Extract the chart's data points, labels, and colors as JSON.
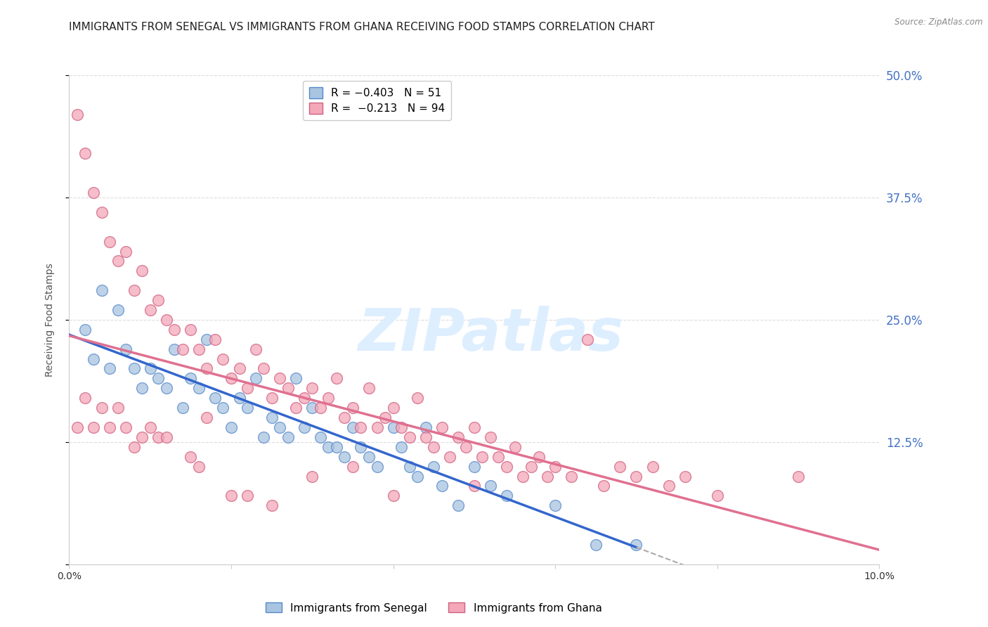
{
  "title": "IMMIGRANTS FROM SENEGAL VS IMMIGRANTS FROM GHANA RECEIVING FOOD STAMPS CORRELATION CHART",
  "source": "Source: ZipAtlas.com",
  "ylabel": "Receiving Food Stamps",
  "legend_corr_labels": [
    "R = −0.403   N = 51",
    "R =  −0.213   N = 94"
  ],
  "legend_bottom_labels": [
    "Immigrants from Senegal",
    "Immigrants from Ghana"
  ],
  "r_senegal": -0.403,
  "n_senegal": 51,
  "r_ghana": -0.213,
  "n_ghana": 94,
  "xmin": 0.0,
  "xmax": 0.1,
  "ymin": 0.0,
  "ymax": 0.5,
  "yticks": [
    0.0,
    0.125,
    0.25,
    0.375,
    0.5
  ],
  "ytick_labels_right": [
    "",
    "12.5%",
    "25.0%",
    "37.5%",
    "50.0%"
  ],
  "xticks": [
    0.0,
    0.02,
    0.04,
    0.06,
    0.08,
    0.1
  ],
  "xtick_labels": [
    "0.0%",
    "",
    "",
    "",
    "",
    "10.0%"
  ],
  "color_senegal": "#a8c4e0",
  "color_ghana": "#f4a7b9",
  "edge_senegal": "#5588cc",
  "edge_ghana": "#d06080",
  "line_color_senegal": "#3366cc",
  "line_color_ghana": "#e07090",
  "dash_ext_color": "#aaaaaa",
  "watermark": "ZIPatlas",
  "watermark_color": "#ddeeff",
  "grid_color": "#dddddd",
  "title_fontsize": 11,
  "tick_fontsize": 10,
  "right_tick_color": "#4472c4",
  "senegal_scatter": [
    [
      0.002,
      0.24
    ],
    [
      0.003,
      0.21
    ],
    [
      0.004,
      0.28
    ],
    [
      0.005,
      0.2
    ],
    [
      0.006,
      0.26
    ],
    [
      0.007,
      0.22
    ],
    [
      0.008,
      0.2
    ],
    [
      0.009,
      0.18
    ],
    [
      0.01,
      0.2
    ],
    [
      0.011,
      0.19
    ],
    [
      0.012,
      0.18
    ],
    [
      0.013,
      0.22
    ],
    [
      0.014,
      0.16
    ],
    [
      0.015,
      0.19
    ],
    [
      0.016,
      0.18
    ],
    [
      0.017,
      0.23
    ],
    [
      0.018,
      0.17
    ],
    [
      0.019,
      0.16
    ],
    [
      0.02,
      0.14
    ],
    [
      0.021,
      0.17
    ],
    [
      0.022,
      0.16
    ],
    [
      0.023,
      0.19
    ],
    [
      0.024,
      0.13
    ],
    [
      0.025,
      0.15
    ],
    [
      0.026,
      0.14
    ],
    [
      0.027,
      0.13
    ],
    [
      0.028,
      0.19
    ],
    [
      0.029,
      0.14
    ],
    [
      0.03,
      0.16
    ],
    [
      0.031,
      0.13
    ],
    [
      0.032,
      0.12
    ],
    [
      0.033,
      0.12
    ],
    [
      0.034,
      0.11
    ],
    [
      0.035,
      0.14
    ],
    [
      0.036,
      0.12
    ],
    [
      0.037,
      0.11
    ],
    [
      0.038,
      0.1
    ],
    [
      0.04,
      0.14
    ],
    [
      0.041,
      0.12
    ],
    [
      0.042,
      0.1
    ],
    [
      0.043,
      0.09
    ],
    [
      0.044,
      0.14
    ],
    [
      0.045,
      0.1
    ],
    [
      0.046,
      0.08
    ],
    [
      0.048,
      0.06
    ],
    [
      0.05,
      0.1
    ],
    [
      0.052,
      0.08
    ],
    [
      0.054,
      0.07
    ],
    [
      0.06,
      0.06
    ],
    [
      0.065,
      0.02
    ],
    [
      0.07,
      0.02
    ]
  ],
  "ghana_scatter": [
    [
      0.001,
      0.46
    ],
    [
      0.002,
      0.42
    ],
    [
      0.003,
      0.38
    ],
    [
      0.004,
      0.36
    ],
    [
      0.005,
      0.33
    ],
    [
      0.006,
      0.31
    ],
    [
      0.007,
      0.32
    ],
    [
      0.008,
      0.28
    ],
    [
      0.009,
      0.3
    ],
    [
      0.01,
      0.26
    ],
    [
      0.011,
      0.27
    ],
    [
      0.012,
      0.25
    ],
    [
      0.013,
      0.24
    ],
    [
      0.014,
      0.22
    ],
    [
      0.015,
      0.24
    ],
    [
      0.016,
      0.22
    ],
    [
      0.017,
      0.2
    ],
    [
      0.018,
      0.23
    ],
    [
      0.019,
      0.21
    ],
    [
      0.02,
      0.19
    ],
    [
      0.021,
      0.2
    ],
    [
      0.022,
      0.18
    ],
    [
      0.023,
      0.22
    ],
    [
      0.024,
      0.2
    ],
    [
      0.025,
      0.17
    ],
    [
      0.026,
      0.19
    ],
    [
      0.027,
      0.18
    ],
    [
      0.028,
      0.16
    ],
    [
      0.029,
      0.17
    ],
    [
      0.03,
      0.18
    ],
    [
      0.031,
      0.16
    ],
    [
      0.032,
      0.17
    ],
    [
      0.033,
      0.19
    ],
    [
      0.034,
      0.15
    ],
    [
      0.035,
      0.16
    ],
    [
      0.036,
      0.14
    ],
    [
      0.037,
      0.18
    ],
    [
      0.038,
      0.14
    ],
    [
      0.039,
      0.15
    ],
    [
      0.04,
      0.16
    ],
    [
      0.041,
      0.14
    ],
    [
      0.042,
      0.13
    ],
    [
      0.043,
      0.17
    ],
    [
      0.044,
      0.13
    ],
    [
      0.045,
      0.12
    ],
    [
      0.046,
      0.14
    ],
    [
      0.047,
      0.11
    ],
    [
      0.048,
      0.13
    ],
    [
      0.049,
      0.12
    ],
    [
      0.05,
      0.14
    ],
    [
      0.051,
      0.11
    ],
    [
      0.052,
      0.13
    ],
    [
      0.053,
      0.11
    ],
    [
      0.054,
      0.1
    ],
    [
      0.055,
      0.12
    ],
    [
      0.056,
      0.09
    ],
    [
      0.057,
      0.1
    ],
    [
      0.058,
      0.11
    ],
    [
      0.059,
      0.09
    ],
    [
      0.06,
      0.1
    ],
    [
      0.062,
      0.09
    ],
    [
      0.064,
      0.23
    ],
    [
      0.066,
      0.08
    ],
    [
      0.068,
      0.1
    ],
    [
      0.07,
      0.09
    ],
    [
      0.072,
      0.1
    ],
    [
      0.074,
      0.08
    ],
    [
      0.076,
      0.09
    ],
    [
      0.001,
      0.14
    ],
    [
      0.002,
      0.17
    ],
    [
      0.003,
      0.14
    ],
    [
      0.004,
      0.16
    ],
    [
      0.005,
      0.14
    ],
    [
      0.006,
      0.16
    ],
    [
      0.007,
      0.14
    ],
    [
      0.008,
      0.12
    ],
    [
      0.009,
      0.13
    ],
    [
      0.01,
      0.14
    ],
    [
      0.011,
      0.13
    ],
    [
      0.012,
      0.13
    ],
    [
      0.015,
      0.11
    ],
    [
      0.016,
      0.1
    ],
    [
      0.017,
      0.15
    ],
    [
      0.02,
      0.07
    ],
    [
      0.022,
      0.07
    ],
    [
      0.025,
      0.06
    ],
    [
      0.03,
      0.09
    ],
    [
      0.035,
      0.1
    ],
    [
      0.04,
      0.07
    ],
    [
      0.05,
      0.08
    ],
    [
      0.08,
      0.07
    ],
    [
      0.09,
      0.09
    ]
  ]
}
